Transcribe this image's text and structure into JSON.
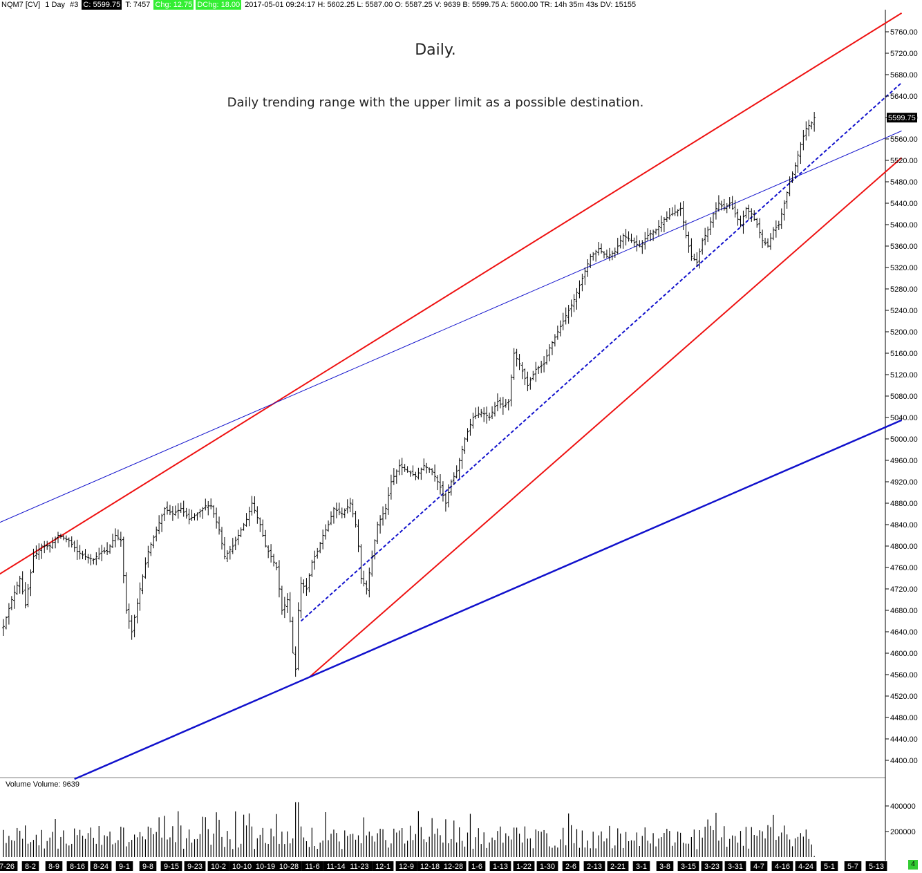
{
  "header": {
    "symbol": "NQM7 [CV]",
    "interval": "1 Day",
    "chart_no": "#3",
    "close": "C: 5599.75",
    "ticks": "T: 7457",
    "chg": "Chg: 12.75",
    "dchg": "DChg: 18.00",
    "quote": "2017-05-01 09:24:17 H: 5602.25 L: 5587.00 O: 5587.25 V: 9639 B: 5599.75 A: 5600.00 TR: 14h 35m 43s DV: 15155"
  },
  "annotations": {
    "title": "Daily.",
    "subtitle": "Daily trending range with the upper limit as a possible destination."
  },
  "volume_label": "Volume  Volume: 9639",
  "badge": "4",
  "colors": {
    "bars": "#000000",
    "channel": "#ee1111",
    "trendline": "#1111cc",
    "axis_label_bg": "#000000",
    "price_marker_bg": "#000000",
    "badge": "#33cc33"
  },
  "chart_data": [
    {
      "type": "ohlc",
      "title": "",
      "y_ticks": [
        4400,
        4440,
        4480,
        4520,
        4560,
        4600,
        4640,
        4680,
        4720,
        4760,
        4800,
        4840,
        4880,
        4920,
        4960,
        5000,
        5040,
        5080,
        5120,
        5160,
        5200,
        5240,
        5280,
        5320,
        5360,
        5400,
        5440,
        5480,
        5520,
        5560,
        5600,
        5640,
        5680,
        5720,
        5760
      ],
      "ylim": [
        4370,
        5800
      ],
      "last_price": 5599.75,
      "x_labels": [
        "7-26",
        "8-2",
        "8-9",
        "8-16",
        "8-24",
        "9-1",
        "9-8",
        "9-15",
        "9-23",
        "10-2",
        "10-10",
        "10-19",
        "10-28",
        "11-6",
        "11-14",
        "11-23",
        "12-1",
        "12-9",
        "12-18",
        "12-28",
        "1-6",
        "1-13",
        "1-22",
        "1-30",
        "2-6",
        "2-13",
        "2-21",
        "3-1",
        "3-8",
        "3-15",
        "3-23",
        "3-31",
        "4-7",
        "4-16",
        "4-24",
        "5-1",
        "5-7",
        "5-13"
      ],
      "close_anchors": [
        [
          0,
          4650
        ],
        [
          3,
          4700
        ],
        [
          6,
          4740
        ],
        [
          8,
          4690
        ],
        [
          11,
          4780
        ],
        [
          14,
          4800
        ],
        [
          17,
          4800
        ],
        [
          20,
          4820
        ],
        [
          24,
          4810
        ],
        [
          27,
          4790
        ],
        [
          30,
          4780
        ],
        [
          33,
          4775
        ],
        [
          36,
          4790
        ],
        [
          38,
          4790
        ],
        [
          41,
          4820
        ],
        [
          43,
          4810
        ],
        [
          45,
          4680
        ],
        [
          47,
          4640
        ],
        [
          50,
          4720
        ],
        [
          53,
          4790
        ],
        [
          56,
          4830
        ],
        [
          59,
          4870
        ],
        [
          62,
          4860
        ],
        [
          65,
          4870
        ],
        [
          68,
          4850
        ],
        [
          71,
          4860
        ],
        [
          74,
          4875
        ],
        [
          76,
          4875
        ],
        [
          79,
          4830
        ],
        [
          81,
          4780
        ],
        [
          84,
          4800
        ],
        [
          87,
          4830
        ],
        [
          89,
          4850
        ],
        [
          91,
          4880
        ],
        [
          94,
          4840
        ],
        [
          96,
          4800
        ],
        [
          98,
          4780
        ],
        [
          100,
          4760
        ],
        [
          102,
          4680
        ],
        [
          104,
          4700
        ],
        [
          105,
          4660
        ],
        [
          106,
          4600
        ],
        [
          107,
          4570
        ],
        [
          108,
          4680
        ],
        [
          109,
          4730
        ],
        [
          111,
          4720
        ],
        [
          113,
          4770
        ],
        [
          115,
          4790
        ],
        [
          117,
          4820
        ],
        [
          119,
          4840
        ],
        [
          121,
          4870
        ],
        [
          124,
          4860
        ],
        [
          127,
          4880
        ],
        [
          129,
          4840
        ],
        [
          130,
          4800
        ],
        [
          131,
          4740
        ],
        [
          133,
          4720
        ],
        [
          135,
          4780
        ],
        [
          137,
          4840
        ],
        [
          140,
          4870
        ],
        [
          142,
          4920
        ],
        [
          145,
          4950
        ],
        [
          148,
          4940
        ],
        [
          151,
          4930
        ],
        [
          154,
          4950
        ],
        [
          157,
          4940
        ],
        [
          160,
          4910
        ],
        [
          162,
          4880
        ],
        [
          164,
          4920
        ],
        [
          166,
          4940
        ],
        [
          169,
          5000
        ],
        [
          172,
          5040
        ],
        [
          175,
          5050
        ],
        [
          178,
          5040
        ],
        [
          181,
          5070
        ],
        [
          183,
          5060
        ],
        [
          185,
          5070
        ],
        [
          187,
          5160
        ],
        [
          189,
          5140
        ],
        [
          192,
          5100
        ],
        [
          195,
          5130
        ],
        [
          198,
          5140
        ],
        [
          200,
          5170
        ],
        [
          203,
          5200
        ],
        [
          206,
          5230
        ],
        [
          209,
          5260
        ],
        [
          212,
          5300
        ],
        [
          215,
          5340
        ],
        [
          218,
          5355
        ],
        [
          221,
          5340
        ],
        [
          224,
          5350
        ],
        [
          227,
          5380
        ],
        [
          230,
          5370
        ],
        [
          233,
          5360
        ],
        [
          236,
          5380
        ],
        [
          239,
          5390
        ],
        [
          242,
          5410
        ],
        [
          245,
          5420
        ],
        [
          248,
          5430
        ],
        [
          250,
          5380
        ],
        [
          252,
          5340
        ],
        [
          254,
          5330
        ],
        [
          256,
          5370
        ],
        [
          258,
          5390
        ],
        [
          260,
          5420
        ],
        [
          262,
          5440
        ],
        [
          264,
          5430
        ],
        [
          266,
          5440
        ],
        [
          268,
          5420
        ],
        [
          270,
          5400
        ],
        [
          272,
          5430
        ],
        [
          274,
          5420
        ],
        [
          276,
          5400
        ],
        [
          278,
          5370
        ],
        [
          280,
          5360
        ],
        [
          282,
          5390
        ],
        [
          284,
          5400
        ],
        [
          286,
          5440
        ],
        [
          288,
          5480
        ],
        [
          290,
          5510
        ],
        [
          292,
          5550
        ],
        [
          294,
          5580
        ],
        [
          296,
          5590
        ],
        [
          297,
          5599.75
        ]
      ],
      "overlays": {
        "channel_upper": [
          [
            -7,
            4730
          ],
          [
            329,
            5795
          ]
        ],
        "channel_lower": [
          [
            112,
            4555
          ],
          [
            329,
            5525
          ]
        ],
        "channel_middle_dashed": [
          [
            109,
            4660
          ],
          [
            329,
            5665
          ]
        ],
        "trendline_upper_thin": [
          [
            -10,
            4825
          ],
          [
            329,
            5575
          ]
        ],
        "trendline_lower_thick": [
          [
            26,
            4365
          ],
          [
            329,
            5035
          ]
        ]
      }
    },
    {
      "type": "bar",
      "title": "Volume",
      "y_ticks": [
        200000,
        400000
      ],
      "ylim": [
        0,
        520000
      ],
      "last_value": 9639
    }
  ]
}
